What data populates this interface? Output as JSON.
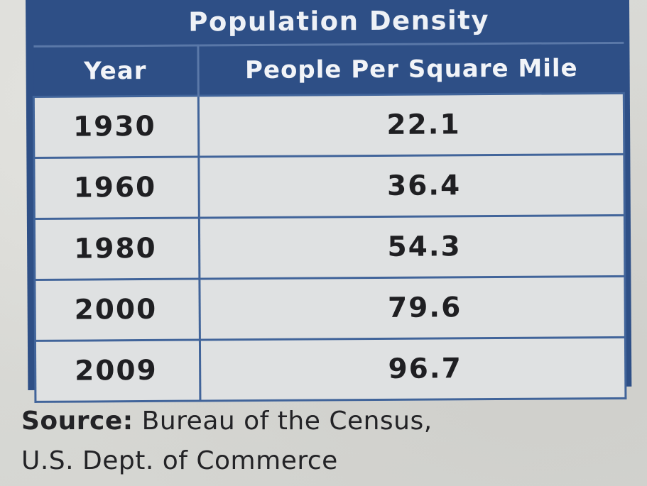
{
  "chart_data": {
    "type": "table",
    "title": "Population Density",
    "columns": [
      "Year",
      "People Per Square Mile"
    ],
    "rows": [
      [
        "1930",
        "22.1"
      ],
      [
        "1960",
        "36.4"
      ],
      [
        "1980",
        "54.3"
      ],
      [
        "2000",
        "79.6"
      ],
      [
        "2009",
        "96.7"
      ]
    ]
  },
  "source": {
    "label": "Source:",
    "line1_text": "Bureau of the Census,",
    "line2": "U.S. Dept. of Commerce"
  },
  "colors": {
    "header_background": "#2e4f86",
    "cell_background": "#dfe1e2",
    "text": "#1f1f22"
  }
}
